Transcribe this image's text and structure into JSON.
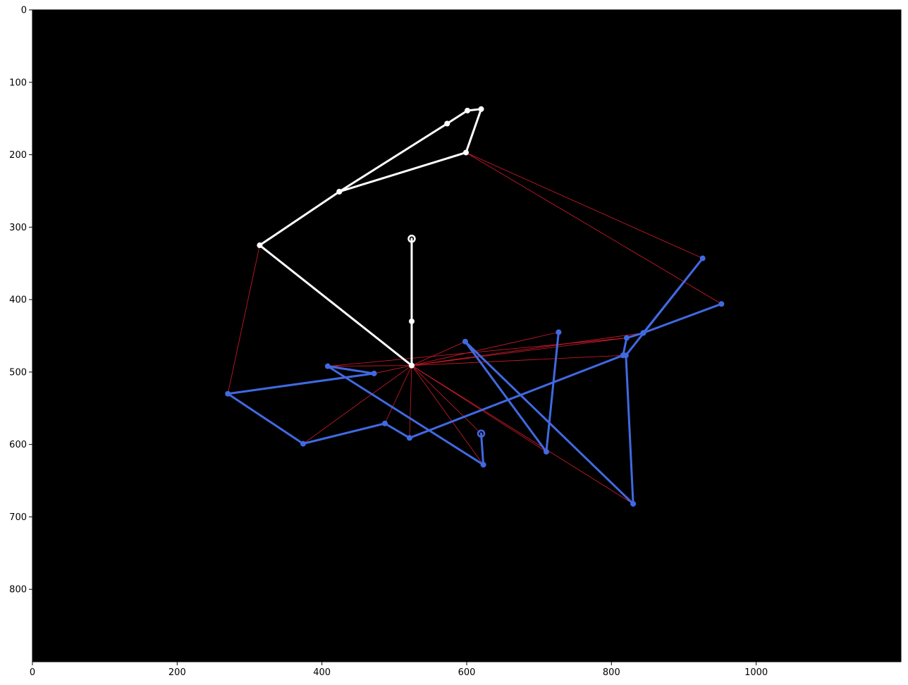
{
  "chart_data": {
    "type": "line",
    "title": "",
    "xlabel": "",
    "ylabel": "",
    "xlim": [
      0,
      1200
    ],
    "ylim": [
      900,
      0
    ],
    "y_inverted": true,
    "grid": false,
    "legend": "none",
    "background_color": "#000000",
    "x_ticks": [
      0,
      200,
      400,
      600,
      800,
      1000
    ],
    "y_ticks": [
      0,
      100,
      200,
      300,
      400,
      500,
      600,
      700,
      800
    ],
    "colors": {
      "white_series": "#ffffff",
      "blue_series": "#4169e1",
      "red_links": "#d41c2c"
    },
    "series": [
      {
        "color": "#ffffff",
        "style": "thick-line-markers",
        "start_marker": "ring",
        "points": [
          [
            524,
            316
          ],
          [
            524,
            430
          ],
          [
            524,
            491
          ],
          [
            314,
            325
          ],
          [
            424,
            251
          ],
          [
            599,
            197
          ],
          [
            620,
            137
          ],
          [
            601,
            139
          ],
          [
            573,
            157
          ],
          [
            424,
            251
          ]
        ]
      },
      {
        "color": "#4169e1",
        "style": "thick-line-markers",
        "start_marker": "ring",
        "points": [
          [
            620,
            585
          ],
          [
            623,
            628
          ],
          [
            408,
            492
          ],
          [
            472,
            502
          ],
          [
            270,
            530
          ],
          [
            374,
            599
          ],
          [
            487,
            571
          ],
          [
            521,
            591
          ],
          [
            816,
            477
          ],
          [
            821,
            453
          ],
          [
            844,
            446
          ],
          [
            952,
            406
          ],
          [
            844,
            446
          ],
          [
            926,
            343
          ],
          [
            820,
            477
          ],
          [
            830,
            682
          ],
          [
            598,
            458
          ],
          [
            710,
            610
          ],
          [
            727,
            445
          ]
        ]
      }
    ],
    "links": {
      "color": "#d41c2c",
      "segments": [
        [
          [
            599,
            197
          ],
          [
            926,
            343
          ]
        ],
        [
          [
            599,
            197
          ],
          [
            952,
            406
          ]
        ],
        [
          [
            314,
            325
          ],
          [
            270,
            530
          ]
        ],
        [
          [
            524,
            491
          ],
          [
            408,
            492
          ]
        ],
        [
          [
            524,
            491
          ],
          [
            472,
            502
          ]
        ],
        [
          [
            524,
            491
          ],
          [
            374,
            599
          ]
        ],
        [
          [
            524,
            491
          ],
          [
            487,
            571
          ]
        ],
        [
          [
            524,
            491
          ],
          [
            521,
            591
          ]
        ],
        [
          [
            524,
            491
          ],
          [
            623,
            628
          ]
        ],
        [
          [
            524,
            491
          ],
          [
            620,
            585
          ]
        ],
        [
          [
            524,
            491
          ],
          [
            598,
            458
          ]
        ],
        [
          [
            524,
            491
          ],
          [
            727,
            445
          ]
        ],
        [
          [
            524,
            491
          ],
          [
            820,
            453
          ]
        ],
        [
          [
            524,
            491
          ],
          [
            844,
            446
          ]
        ],
        [
          [
            524,
            491
          ],
          [
            816,
            477
          ]
        ],
        [
          [
            524,
            491
          ],
          [
            710,
            610
          ]
        ],
        [
          [
            524,
            491
          ],
          [
            830,
            682
          ]
        ],
        [
          [
            408,
            492
          ],
          [
            821,
            453
          ]
        ],
        [
          [
            598,
            458
          ],
          [
            830,
            682
          ]
        ]
      ]
    }
  }
}
